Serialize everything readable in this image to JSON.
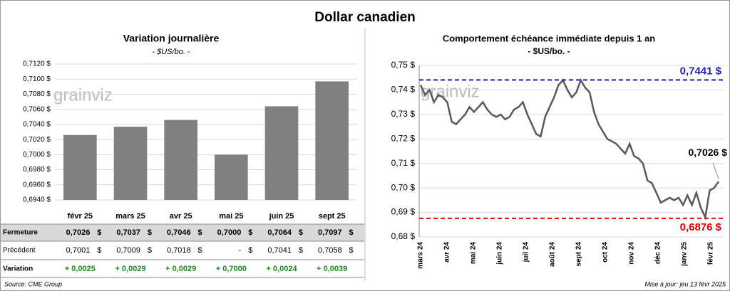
{
  "title": "Dollar canadien",
  "watermark": "grainviz",
  "chart_data": [
    {
      "type": "bar",
      "title": "Variation journalière",
      "subtitle": "- $US/bo. -",
      "categories": [
        "févr 25",
        "mars 25",
        "avr 25",
        "mai 25",
        "juin 25",
        "sept 25"
      ],
      "values": [
        0.7026,
        0.7037,
        0.7046,
        0.7,
        0.7064,
        0.7097
      ],
      "color": "#808080",
      "ylim": [
        0.694,
        0.712
      ],
      "yticks": [
        {
          "value": 0.694,
          "label": "0,6940 $"
        },
        {
          "value": 0.696,
          "label": "0,6960 $"
        },
        {
          "value": 0.698,
          "label": "0,6980 $"
        },
        {
          "value": 0.7,
          "label": "0,7000 $"
        },
        {
          "value": 0.702,
          "label": "0,7020 $"
        },
        {
          "value": 0.704,
          "label": "0,7040 $"
        },
        {
          "value": 0.706,
          "label": "0,7060 $"
        },
        {
          "value": 0.708,
          "label": "0,7080 $"
        },
        {
          "value": 0.71,
          "label": "0,7100 $"
        },
        {
          "value": 0.712,
          "label": "0,7120 $"
        }
      ],
      "grid": true
    },
    {
      "type": "line",
      "title": "Comportement échéance immédiate depuis 1 an",
      "subtitle": "- $US/bo. -",
      "x_tick_labels": [
        "mars 24",
        "avr 24",
        "mai 24",
        "juin 24",
        "juil 24",
        "août 24",
        "sept 24",
        "oct 24",
        "nov 24",
        "déc 24",
        "janv 25",
        "févr 25"
      ],
      "values": [
        0.742,
        0.738,
        0.74,
        0.735,
        0.738,
        0.737,
        0.735,
        0.727,
        0.726,
        0.728,
        0.73,
        0.733,
        0.731,
        0.733,
        0.735,
        0.732,
        0.73,
        0.729,
        0.73,
        0.728,
        0.729,
        0.732,
        0.733,
        0.735,
        0.73,
        0.726,
        0.722,
        0.721,
        0.729,
        0.733,
        0.737,
        0.742,
        0.744,
        0.74,
        0.737,
        0.739,
        0.744,
        0.741,
        0.739,
        0.731,
        0.726,
        0.723,
        0.72,
        0.719,
        0.718,
        0.716,
        0.714,
        0.718,
        0.713,
        0.712,
        0.71,
        0.703,
        0.702,
        0.698,
        0.694,
        0.695,
        0.696,
        0.695,
        0.696,
        0.693,
        0.697,
        0.693,
        0.698,
        0.692,
        0.688,
        0.699,
        0.7,
        0.7026
      ],
      "color": "#595959",
      "end_label": "0,7026 $",
      "ylim": [
        0.68,
        0.75
      ],
      "yticks": [
        {
          "value": 0.68,
          "label": "0,68 $"
        },
        {
          "value": 0.69,
          "label": "0,69 $"
        },
        {
          "value": 0.7,
          "label": "0,70 $"
        },
        {
          "value": 0.71,
          "label": "0,71 $"
        },
        {
          "value": 0.72,
          "label": "0,72 $"
        },
        {
          "value": 0.73,
          "label": "0,73 $"
        },
        {
          "value": 0.74,
          "label": "0,74 $"
        },
        {
          "value": 0.75,
          "label": "0,75 $"
        }
      ],
      "grid": true,
      "reference_lines": [
        {
          "value": 0.7441,
          "label": "0,7441 $",
          "color": "#1f1fb4"
        },
        {
          "value": 0.6876,
          "label": "0,6876 $",
          "color": "#e00000"
        }
      ]
    }
  ],
  "table": {
    "unit": "$",
    "rows": [
      {
        "label": "Fermeture",
        "cells": [
          "0,7026",
          "0,7037",
          "0,7046",
          "0,7000",
          "0,7064",
          "0,7097"
        ]
      },
      {
        "label": "Précédent",
        "cells": [
          "0,7001",
          "0,7009",
          "0,7018",
          "-",
          "0,7041",
          "0,7058"
        ]
      },
      {
        "label": "Variation",
        "cells": [
          "+ 0,0025",
          "+ 0,0029",
          "+ 0,0029",
          "+ 0,7000",
          "+ 0,0024",
          "+ 0,0039"
        ]
      }
    ]
  },
  "footer": {
    "source": "Source: CME Group",
    "updated": "Mise à jour: jeu 13 févr 2025"
  }
}
